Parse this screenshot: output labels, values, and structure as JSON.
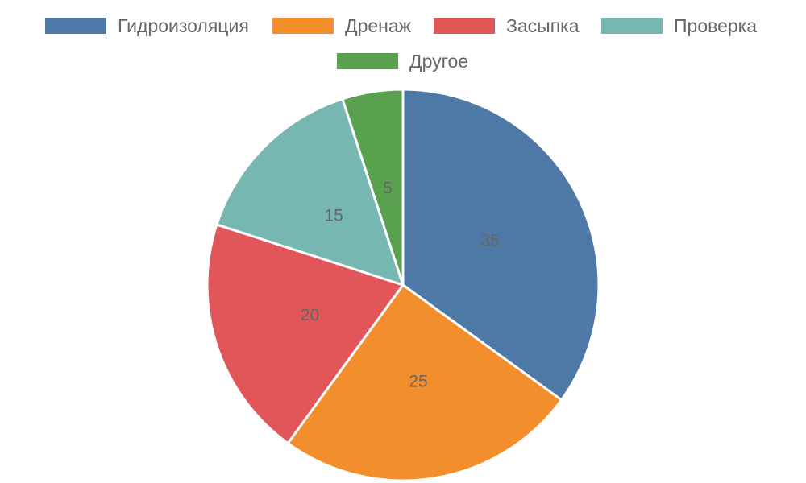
{
  "chart_data": {
    "type": "pie",
    "categories": [
      "Гидроизоляция",
      "Дренаж",
      "Засыпка",
      "Проверка",
      "Другое"
    ],
    "values": [
      35,
      25,
      20,
      15,
      5
    ],
    "colors": [
      "#4e79a7",
      "#f28e2b",
      "#e15759",
      "#76b7b2",
      "#59a14f"
    ],
    "data_labels": [
      "35",
      "25",
      "20",
      "15",
      "5"
    ],
    "legend_position": "top",
    "slice_border_color": "#ffffff",
    "label_color": "#666666"
  }
}
